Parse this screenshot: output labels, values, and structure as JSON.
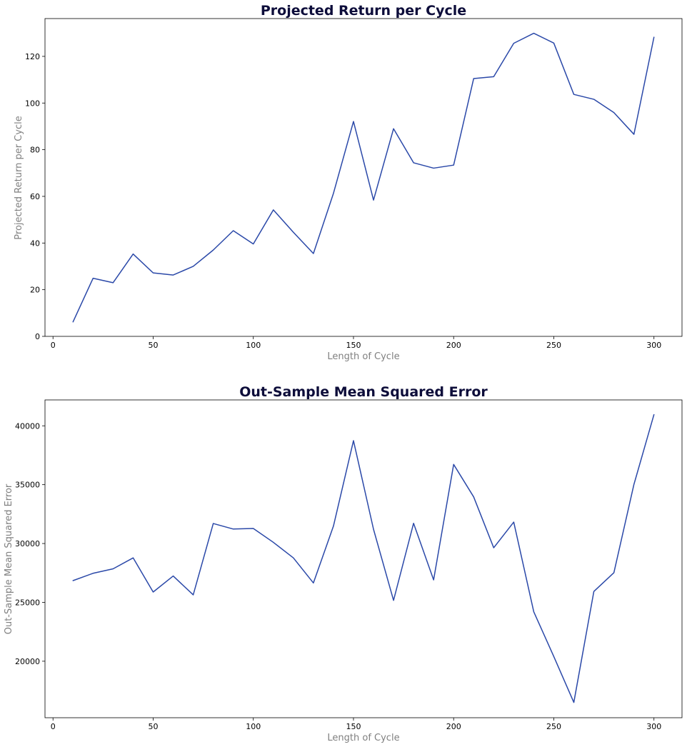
{
  "colors": {
    "series": "#2a48a8",
    "title": "#0d0d3a",
    "axis_label": "#808080"
  },
  "chart_data": [
    {
      "type": "line",
      "title": "Projected Return per Cycle",
      "xlabel": "Length of Cycle",
      "ylabel": "Projected Return per Cycle",
      "xlim": [
        -4,
        314
      ],
      "ylim": [
        0,
        136.2
      ],
      "xticks": [
        0,
        50,
        100,
        150,
        200,
        250,
        300
      ],
      "yticks": [
        0,
        20,
        40,
        60,
        80,
        100,
        120
      ],
      "grid": false,
      "x": [
        10,
        20,
        30,
        40,
        50,
        60,
        70,
        80,
        90,
        100,
        110,
        120,
        130,
        140,
        150,
        160,
        170,
        180,
        190,
        200,
        210,
        220,
        230,
        240,
        250,
        260,
        270,
        280,
        290,
        300
      ],
      "series": [
        {
          "values": [
            6.2,
            24.9,
            23.0,
            35.3,
            27.2,
            26.3,
            30.0,
            37.0,
            45.3,
            39.6,
            54.2,
            44.6,
            35.5,
            61.3,
            92.1,
            58.4,
            89.0,
            74.4,
            72.1,
            73.4,
            110.5,
            111.3,
            125.6,
            129.9,
            125.7,
            103.7,
            101.6,
            95.9,
            86.6,
            128.2
          ]
        }
      ]
    },
    {
      "type": "line",
      "title": "Out-Sample Mean Squared Error",
      "xlabel": "Length of Cycle",
      "ylabel": "Out-Sample Mean Squared Error",
      "xlim": [
        -4,
        314
      ],
      "ylim": [
        15200,
        42200
      ],
      "xticks": [
        0,
        50,
        100,
        150,
        200,
        250,
        300
      ],
      "yticks": [
        20000,
        25000,
        30000,
        35000,
        40000
      ],
      "grid": false,
      "x": [
        10,
        20,
        30,
        40,
        50,
        60,
        70,
        80,
        90,
        100,
        110,
        120,
        130,
        140,
        150,
        160,
        170,
        180,
        190,
        200,
        210,
        220,
        230,
        240,
        250,
        260,
        270,
        280,
        290,
        300
      ],
      "series": [
        {
          "values": [
            26850,
            27470,
            27850,
            28780,
            25880,
            27240,
            25640,
            31700,
            31230,
            31280,
            30100,
            28780,
            26650,
            31480,
            38740,
            31210,
            25170,
            31720,
            26910,
            36720,
            33960,
            29640,
            31820,
            24200,
            20400,
            16500,
            25930,
            27520,
            35020,
            40950
          ]
        }
      ]
    }
  ]
}
